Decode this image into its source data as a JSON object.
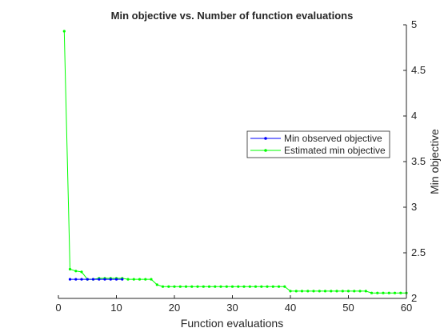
{
  "chart_data": {
    "type": "line",
    "title": "Min objective vs. Number of function evaluations",
    "xlabel": "Function evaluations",
    "ylabel": "Min objective",
    "xlim": [
      0,
      60
    ],
    "ylim": [
      2,
      5
    ],
    "xticks": [
      0,
      10,
      20,
      30,
      40,
      50,
      60
    ],
    "yticks": [
      2,
      2.5,
      3,
      3.5,
      4,
      4.5,
      5
    ],
    "y_axis_position": "right",
    "grid": false,
    "legend_position": "right",
    "series": [
      {
        "name": "Min observed objective",
        "color": "#0000ff",
        "x": [
          2,
          3,
          4,
          5,
          6,
          7,
          8,
          9,
          10,
          11
        ],
        "y": [
          2.21,
          2.21,
          2.21,
          2.21,
          2.21,
          2.21,
          2.21,
          2.21,
          2.21,
          2.21
        ]
      },
      {
        "name": "Estimated min objective",
        "color": "#00ff00",
        "x": [
          1,
          2,
          3,
          4,
          5,
          6,
          7,
          8,
          9,
          10,
          11,
          12,
          13,
          14,
          15,
          16,
          17,
          18,
          19,
          20,
          21,
          22,
          23,
          24,
          25,
          26,
          27,
          28,
          29,
          30,
          31,
          32,
          33,
          34,
          35,
          36,
          37,
          38,
          39,
          40,
          41,
          42,
          43,
          44,
          45,
          46,
          47,
          48,
          49,
          50,
          51,
          52,
          53,
          54,
          55,
          56,
          57,
          58,
          59,
          60
        ],
        "y": [
          4.93,
          2.32,
          2.3,
          2.29,
          2.21,
          2.21,
          2.22,
          2.22,
          2.22,
          2.22,
          2.22,
          2.21,
          2.21,
          2.21,
          2.21,
          2.21,
          2.15,
          2.13,
          2.13,
          2.13,
          2.13,
          2.13,
          2.13,
          2.13,
          2.13,
          2.13,
          2.13,
          2.13,
          2.13,
          2.13,
          2.13,
          2.13,
          2.13,
          2.13,
          2.13,
          2.13,
          2.13,
          2.13,
          2.13,
          2.08,
          2.08,
          2.08,
          2.08,
          2.08,
          2.08,
          2.08,
          2.08,
          2.08,
          2.08,
          2.08,
          2.08,
          2.08,
          2.08,
          2.06,
          2.06,
          2.06,
          2.06,
          2.06,
          2.06,
          2.06
        ]
      }
    ]
  }
}
